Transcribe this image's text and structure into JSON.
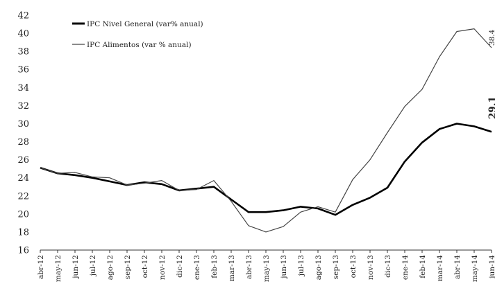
{
  "chart_data": {
    "type": "line",
    "categories": [
      "abr-12",
      "may-12",
      "jun-12",
      "jul-12",
      "ago-12",
      "sep-12",
      "oct-12",
      "nov-12",
      "dic-12",
      "ene-13",
      "feb-13",
      "mar-13",
      "abr-13",
      "may-13",
      "jun-13",
      "jul-13",
      "ago-13",
      "sep-13",
      "oct-13",
      "nov-13",
      "dic-13",
      "ene-14",
      "feb-14",
      "mar-14",
      "abr-14",
      "may-14",
      "jun-14"
    ],
    "series": [
      {
        "name": "IPC Nivel General (var% anual)",
        "values": [
          25.1,
          24.5,
          24.3,
          24.0,
          23.6,
          23.2,
          23.5,
          23.3,
          22.6,
          22.8,
          23.0,
          21.6,
          20.2,
          20.2,
          20.4,
          20.8,
          20.6,
          19.9,
          21.0,
          21.8,
          22.9,
          25.8,
          27.9,
          29.4,
          30.0,
          29.7,
          29.1
        ],
        "color": "#000000",
        "end_label": "29.1"
      },
      {
        "name": "IPC Alimentos (var % anual)",
        "values": [
          25.1,
          24.5,
          24.6,
          24.1,
          24.0,
          23.2,
          23.4,
          23.7,
          22.6,
          22.7,
          23.7,
          21.4,
          18.7,
          18.0,
          18.6,
          20.2,
          20.8,
          20.2,
          23.8,
          26.0,
          29.0,
          31.9,
          33.8,
          37.4,
          40.2,
          40.5,
          38.4
        ],
        "color": "#444444",
        "end_label": "38.4"
      }
    ],
    "ylim": [
      16,
      42
    ],
    "yticks": [
      "16",
      "18",
      "20",
      "22",
      "24",
      "26",
      "28",
      "30",
      "32",
      "34",
      "36",
      "38",
      "40",
      "42"
    ],
    "grid": false,
    "legend_position": "top-left"
  }
}
